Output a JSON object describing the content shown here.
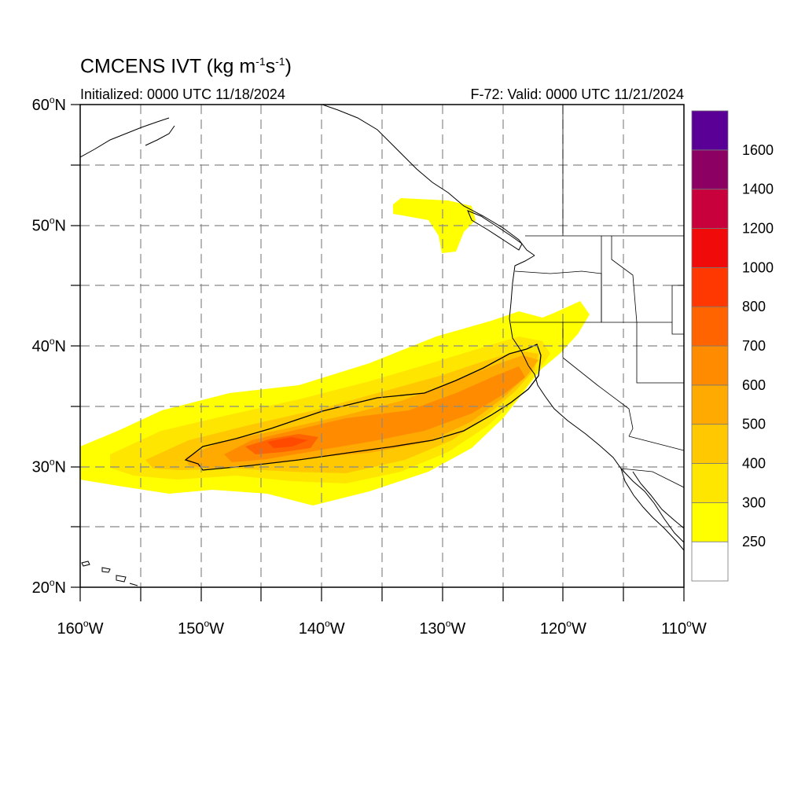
{
  "title": {
    "text": "CMCENS IVT (kg m",
    "sup1": "-1",
    "mid": "s",
    "sup2": "-1",
    "end": ")"
  },
  "initialized": "Initialized: 0000 UTC 11/18/2024",
  "valid": "F-72: Valid: 0000 UTC 11/21/2024",
  "lat_ticks": [
    {
      "value": 60,
      "num": "60",
      "hemi": "N"
    },
    {
      "value": 50,
      "num": "50",
      "hemi": "N"
    },
    {
      "value": 40,
      "num": "40",
      "hemi": "N"
    },
    {
      "value": 30,
      "num": "30",
      "hemi": "N"
    },
    {
      "value": 20,
      "num": "20",
      "hemi": "N"
    }
  ],
  "lon_ticks": [
    {
      "value": -160,
      "num": "160",
      "hemi": "W"
    },
    {
      "value": -150,
      "num": "150",
      "hemi": "W"
    },
    {
      "value": -140,
      "num": "140",
      "hemi": "W"
    },
    {
      "value": -130,
      "num": "130",
      "hemi": "W"
    },
    {
      "value": -120,
      "num": "120",
      "hemi": "W"
    },
    {
      "value": -110,
      "num": "110",
      "hemi": "W"
    }
  ],
  "colorbar": {
    "levels": [
      {
        "color": "#ffffff"
      },
      {
        "color": "#ffff00",
        "label": "250"
      },
      {
        "color": "#ffe600",
        "label": "300"
      },
      {
        "color": "#ffc800",
        "label": "400"
      },
      {
        "color": "#ffaa00",
        "label": "500"
      },
      {
        "color": "#ff8c00",
        "label": "600"
      },
      {
        "color": "#ff6400",
        "label": "700"
      },
      {
        "color": "#ff3700",
        "label": "800"
      },
      {
        "color": "#f00a0a",
        "label": "1000"
      },
      {
        "color": "#c8003c",
        "label": "1200"
      },
      {
        "color": "#8c0064",
        "label": "1400"
      },
      {
        "color": "#5a0096",
        "label": "1600"
      }
    ]
  }
}
